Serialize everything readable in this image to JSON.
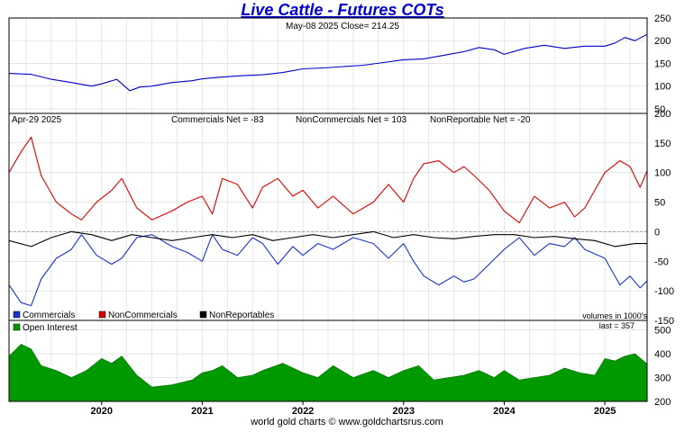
{
  "title": "Live Cattle - Futures COTs",
  "footer": "world gold charts © www.goldchartsrus.com",
  "colors": {
    "title": "#0000cc",
    "price": "#0000cc",
    "commercials": "#1a33cc",
    "noncommercials": "#dd0000",
    "nonreportables": "#000000",
    "open_interest": "#009900",
    "grid": "#d8d8d8"
  },
  "chart_data": [
    {
      "type": "line",
      "panel": "price",
      "header": "May-08  2025   Close= 214.25",
      "close": 214.25,
      "ylim": [
        40,
        250
      ],
      "yticks": [
        50,
        100,
        150,
        200,
        250
      ],
      "x_years": [
        "2020",
        "2021",
        "2022",
        "2023",
        "2024",
        "2025"
      ],
      "x_range": [
        2019.08,
        2025.42
      ],
      "series": [
        {
          "color": "#0000cc",
          "x": [
            2019.08,
            2019.3,
            2019.5,
            2019.7,
            2019.9,
            2020.0,
            2020.15,
            2020.28,
            2020.38,
            2020.5,
            2020.7,
            2020.9,
            2021.0,
            2021.2,
            2021.4,
            2021.6,
            2021.8,
            2022.0,
            2022.2,
            2022.4,
            2022.6,
            2022.8,
            2023.0,
            2023.2,
            2023.4,
            2023.6,
            2023.75,
            2023.9,
            2024.0,
            2024.2,
            2024.4,
            2024.6,
            2024.8,
            2025.0,
            2025.1,
            2025.2,
            2025.3,
            2025.42
          ],
          "y": [
            128,
            126,
            115,
            108,
            100,
            105,
            115,
            90,
            98,
            100,
            108,
            112,
            116,
            120,
            123,
            125,
            130,
            138,
            140,
            143,
            146,
            152,
            158,
            160,
            168,
            176,
            185,
            180,
            170,
            183,
            190,
            183,
            188,
            188,
            195,
            207,
            200,
            214
          ]
        }
      ]
    },
    {
      "type": "line",
      "panel": "cot",
      "date_label": "Apr-29  2025",
      "stats": {
        "commercials": "Commercials Net = -83",
        "noncommercials": "NonCommercials Net = 103",
        "nonreportables": "NonReportable Net = -20"
      },
      "ylim": [
        -150,
        200
      ],
      "yticks": [
        200,
        150,
        100,
        50,
        0,
        -50,
        -100,
        -150
      ],
      "x_range": [
        2019.08,
        2025.42
      ],
      "legend": [
        "Commercials",
        "NonCommercials",
        "NonReportables"
      ],
      "legend_position": "bottom-left",
      "note": "volumes in 1000's",
      "series": [
        {
          "name": "Commercials",
          "color": "#1a33cc",
          "x": [
            2019.08,
            2019.2,
            2019.3,
            2019.4,
            2019.55,
            2019.7,
            2019.8,
            2019.95,
            2020.1,
            2020.2,
            2020.35,
            2020.5,
            2020.7,
            2020.85,
            2021.0,
            2021.1,
            2021.2,
            2021.35,
            2021.5,
            2021.6,
            2021.75,
            2021.9,
            2022.0,
            2022.15,
            2022.3,
            2022.5,
            2022.7,
            2022.85,
            2023.0,
            2023.1,
            2023.2,
            2023.35,
            2023.5,
            2023.6,
            2023.7,
            2023.85,
            2024.0,
            2024.15,
            2024.3,
            2024.45,
            2024.6,
            2024.7,
            2024.8,
            2025.0,
            2025.15,
            2025.25,
            2025.35,
            2025.42
          ],
          "y": [
            -90,
            -120,
            -125,
            -80,
            -45,
            -30,
            -5,
            -40,
            -55,
            -45,
            -10,
            -5,
            -25,
            -35,
            -50,
            -5,
            -30,
            -40,
            -10,
            -20,
            -55,
            -25,
            -40,
            -20,
            -30,
            -10,
            -20,
            -45,
            -20,
            -50,
            -75,
            -90,
            -75,
            -85,
            -80,
            -55,
            -30,
            -10,
            -40,
            -20,
            -25,
            -10,
            -30,
            -45,
            -90,
            -75,
            -95,
            -83
          ]
        },
        {
          "name": "NonCommercials",
          "color": "#dd0000",
          "x": [
            2019.08,
            2019.2,
            2019.3,
            2019.4,
            2019.55,
            2019.7,
            2019.8,
            2019.95,
            2020.1,
            2020.2,
            2020.35,
            2020.5,
            2020.7,
            2020.85,
            2021.0,
            2021.1,
            2021.2,
            2021.35,
            2021.5,
            2021.6,
            2021.75,
            2021.9,
            2022.0,
            2022.15,
            2022.3,
            2022.5,
            2022.7,
            2022.85,
            2023.0,
            2023.1,
            2023.2,
            2023.35,
            2023.5,
            2023.6,
            2023.7,
            2023.85,
            2024.0,
            2024.15,
            2024.3,
            2024.45,
            2024.6,
            2024.7,
            2024.8,
            2025.0,
            2025.15,
            2025.25,
            2025.35,
            2025.42
          ],
          "y": [
            100,
            135,
            160,
            95,
            50,
            30,
            20,
            50,
            70,
            90,
            40,
            20,
            35,
            50,
            60,
            30,
            90,
            80,
            40,
            75,
            90,
            60,
            70,
            40,
            60,
            30,
            50,
            80,
            50,
            90,
            115,
            120,
            100,
            110,
            95,
            70,
            35,
            15,
            60,
            40,
            50,
            25,
            40,
            100,
            120,
            110,
            75,
            103
          ]
        },
        {
          "name": "NonReportables",
          "color": "#000000",
          "x": [
            2019.08,
            2019.3,
            2019.5,
            2019.7,
            2019.9,
            2020.1,
            2020.3,
            2020.5,
            2020.7,
            2020.9,
            2021.1,
            2021.3,
            2021.5,
            2021.7,
            2021.9,
            2022.1,
            2022.3,
            2022.5,
            2022.7,
            2022.9,
            2023.1,
            2023.3,
            2023.5,
            2023.7,
            2023.9,
            2024.1,
            2024.3,
            2024.5,
            2024.7,
            2024.9,
            2025.1,
            2025.3,
            2025.42
          ],
          "y": [
            -15,
            -25,
            -10,
            0,
            -5,
            -15,
            -5,
            -10,
            -15,
            -10,
            -5,
            -10,
            -5,
            -15,
            -10,
            -5,
            -10,
            -5,
            0,
            -10,
            -5,
            -10,
            -12,
            -8,
            -5,
            -5,
            -10,
            -8,
            -12,
            -15,
            -25,
            -20,
            -20
          ]
        }
      ]
    },
    {
      "type": "area",
      "panel": "open_interest",
      "legend": [
        "Open Interest"
      ],
      "note": "last = 357",
      "last": 357,
      "ylim": [
        200,
        540
      ],
      "yticks": [
        200,
        300,
        400,
        500
      ],
      "x_range": [
        2019.08,
        2025.42
      ],
      "series": [
        {
          "name": "Open Interest",
          "color": "#009900",
          "x": [
            2019.08,
            2019.2,
            2019.3,
            2019.4,
            2019.55,
            2019.7,
            2019.85,
            2020.0,
            2020.1,
            2020.2,
            2020.35,
            2020.5,
            2020.7,
            2020.9,
            2021.0,
            2021.1,
            2021.2,
            2021.35,
            2021.5,
            2021.6,
            2021.8,
            2022.0,
            2022.15,
            2022.3,
            2022.5,
            2022.7,
            2022.85,
            2023.0,
            2023.15,
            2023.3,
            2023.45,
            2023.6,
            2023.75,
            2023.9,
            2024.0,
            2024.15,
            2024.3,
            2024.45,
            2024.6,
            2024.75,
            2024.9,
            2025.0,
            2025.1,
            2025.2,
            2025.3,
            2025.42
          ],
          "y": [
            390,
            440,
            420,
            350,
            330,
            300,
            330,
            380,
            360,
            390,
            310,
            260,
            270,
            290,
            320,
            330,
            350,
            300,
            310,
            330,
            360,
            320,
            300,
            350,
            300,
            330,
            300,
            330,
            350,
            290,
            300,
            310,
            330,
            300,
            330,
            290,
            300,
            310,
            340,
            320,
            310,
            380,
            370,
            390,
            400,
            357
          ]
        }
      ]
    }
  ]
}
